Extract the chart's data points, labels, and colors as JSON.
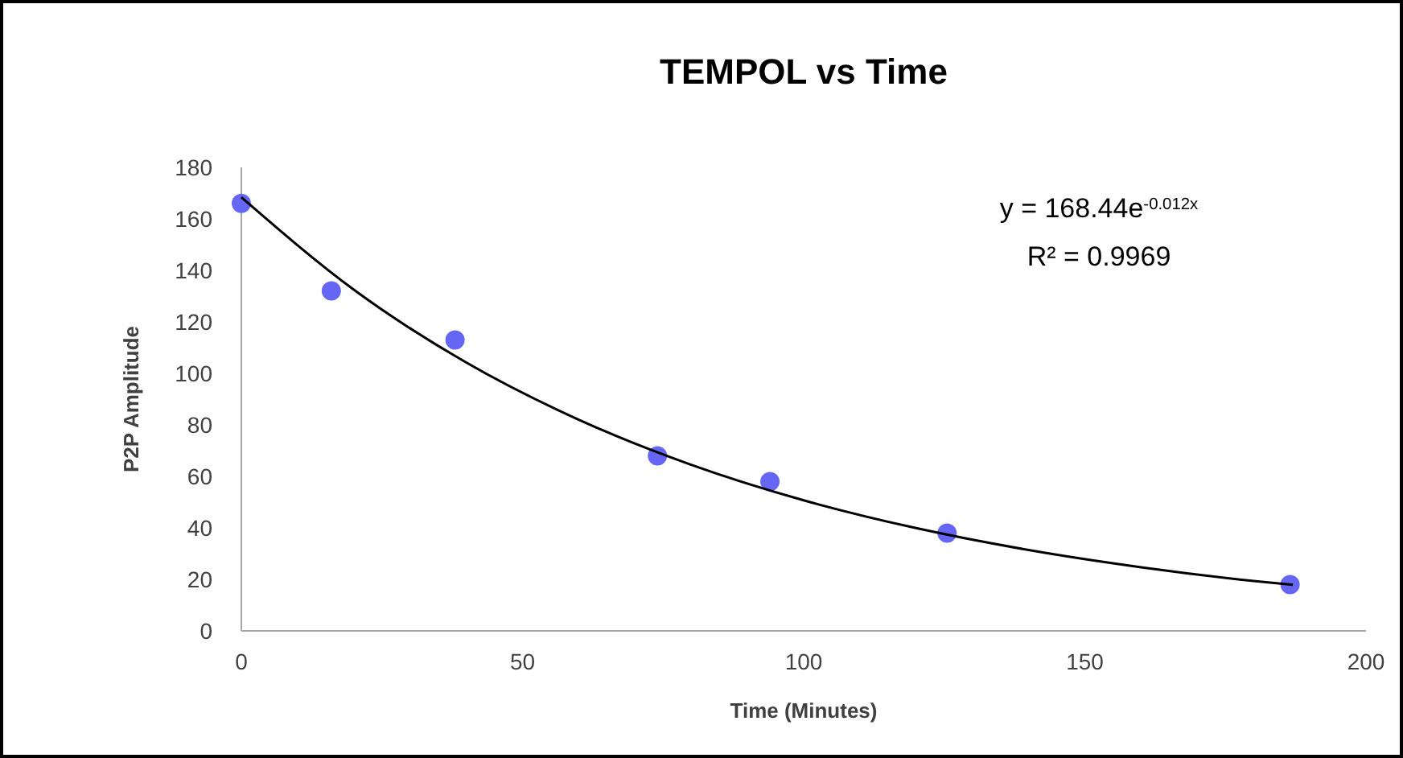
{
  "chart_data": {
    "type": "scatter",
    "title": "TEMPOL vs Time",
    "xlabel": "Time (Minutes)",
    "ylabel": "P2P Amplitude",
    "xlim": [
      0,
      200
    ],
    "xticks": [
      0,
      50,
      100,
      150,
      200
    ],
    "ylim": [
      0,
      180
    ],
    "yticks": [
      0,
      20,
      40,
      60,
      80,
      100,
      120,
      140,
      160,
      180
    ],
    "marker": "circle",
    "grid": false,
    "annotations": [
      "y = 168.44e$^{-0.012x}$",
      "R² = 0.9969"
    ],
    "series": [
      {
        "color": "#6666f5",
        "x": [
          0,
          16,
          38,
          74,
          94,
          125.5,
          186.5
        ],
        "values": [
          166,
          132,
          113,
          68,
          58,
          38,
          18
        ]
      },
      {
        "type": "line",
        "color": "#000000",
        "marker": "none",
        "x": [
          0,
          20,
          40,
          60,
          80,
          100,
          120,
          140,
          160,
          180,
          187
        ],
        "values": [
          168.4,
          132.5,
          104.2,
          82.0,
          64.5,
          50.7,
          39.9,
          31.4,
          24.7,
          19.4,
          17.9
        ]
      }
    ]
  }
}
